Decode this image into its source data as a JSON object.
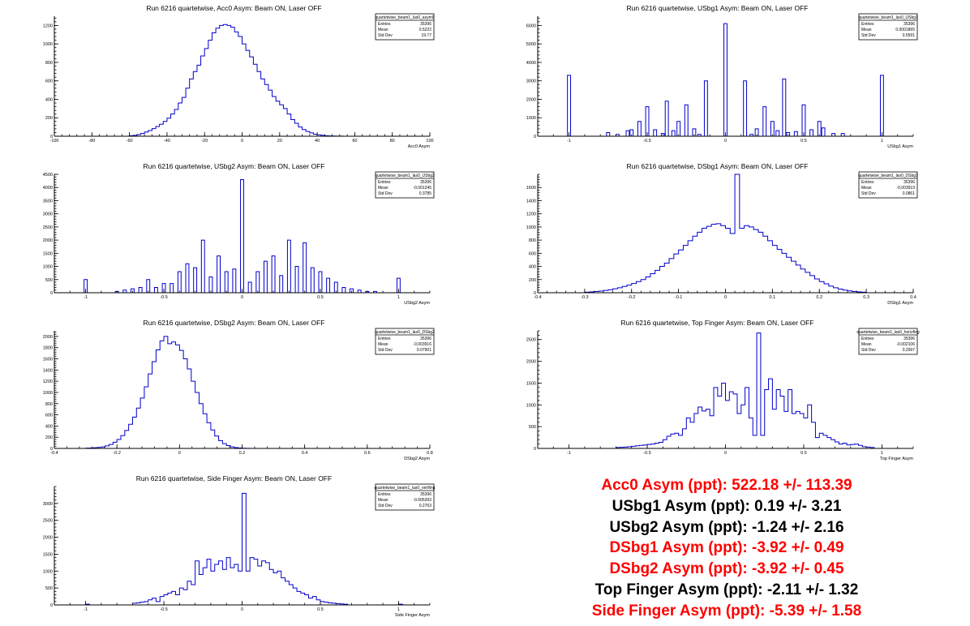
{
  "colors": {
    "histogram": "#0000cc",
    "axis": "#000000",
    "highlight": "#ff0000",
    "normal": "#000000"
  },
  "stat_labels": {
    "entries": "Entries",
    "mean": "Mean",
    "std": "Std Dev"
  },
  "chart_data": [
    {
      "type": "histogram",
      "title": "Run 6216 quartetwise, Acc0 Asym: Beam ON, Laser OFF",
      "xlabel": "Acc0 Asym",
      "xlim": [
        -100,
        100
      ],
      "ylim": [
        0,
        1300
      ],
      "xticks": [
        -100,
        -80,
        -60,
        -40,
        -20,
        0,
        20,
        40,
        60,
        80,
        100
      ],
      "xtick_labels": [
        "-100",
        "-80",
        "-60",
        "-40",
        "-20",
        "0",
        "20",
        "40",
        "60",
        "80",
        "100"
      ],
      "yticks": [
        0,
        200,
        400,
        600,
        800,
        1000,
        1200
      ],
      "ytick_labels": [
        "0",
        "200",
        "400",
        "600",
        "800",
        "1000",
        "1200"
      ],
      "stats": {
        "name": "quartetwise_beam1_las0_asym0",
        "entries": "35396",
        "mean": "0.5222",
        "std": "19.77"
      },
      "bin_width": 2,
      "bin_edges_start": -60,
      "counts": [
        5,
        10,
        18,
        30,
        45,
        62,
        82,
        105,
        130,
        160,
        195,
        240,
        290,
        360,
        420,
        520,
        620,
        700,
        770,
        870,
        950,
        1040,
        1120,
        1170,
        1200,
        1210,
        1200,
        1180,
        1130,
        1080,
        1000,
        930,
        860,
        780,
        700,
        620,
        560,
        500,
        430,
        380,
        340,
        300,
        240,
        180,
        140,
        100,
        72,
        52,
        36,
        22,
        15,
        10,
        6,
        3,
        2,
        1,
        1,
        0,
        0,
        0
      ]
    },
    {
      "type": "histogram",
      "title": "Run 6216 quartetwise, USbg1 Asym: Beam ON, Laser OFF",
      "xlabel": "USbg1 Asym",
      "xlim": [
        -1.2,
        1.2
      ],
      "ylim": [
        0,
        6500
      ],
      "xticks": [
        -1,
        -0.5,
        0,
        0.5,
        1
      ],
      "xtick_labels": [
        "-1",
        "-0.5",
        "0",
        "0.5",
        "1"
      ],
      "yticks": [
        0,
        1000,
        2000,
        3000,
        4000,
        5000,
        6000
      ],
      "ytick_labels": [
        "0",
        "1000",
        "2000",
        "3000",
        "4000",
        "5000",
        "6000"
      ],
      "stats": {
        "name": "quartetwise_beam1_las0_USbg1",
        "entries": "35396",
        "mean": "0.0001865",
        "std": "0.5591"
      },
      "spikes": [
        [
          -1.0,
          3300
        ],
        [
          -0.75,
          200
        ],
        [
          -0.69,
          100
        ],
        [
          -0.625,
          300
        ],
        [
          -0.6,
          350
        ],
        [
          -0.55,
          800
        ],
        [
          -0.5,
          1600
        ],
        [
          -0.45,
          350
        ],
        [
          -0.4,
          150
        ],
        [
          -0.375,
          1900
        ],
        [
          -0.333,
          300
        ],
        [
          -0.3,
          800
        ],
        [
          -0.25,
          1700
        ],
        [
          -0.2,
          400
        ],
        [
          -0.167,
          100
        ],
        [
          -0.125,
          3000
        ],
        [
          0.0,
          6100
        ],
        [
          0.125,
          3000
        ],
        [
          0.167,
          100
        ],
        [
          0.2,
          400
        ],
        [
          0.25,
          1600
        ],
        [
          0.3,
          800
        ],
        [
          0.333,
          300
        ],
        [
          0.375,
          3100
        ],
        [
          0.4,
          200
        ],
        [
          0.45,
          250
        ],
        [
          0.5,
          1700
        ],
        [
          0.55,
          350
        ],
        [
          0.6,
          800
        ],
        [
          0.625,
          450
        ],
        [
          0.69,
          150
        ],
        [
          0.75,
          150
        ],
        [
          1.0,
          3300
        ]
      ]
    },
    {
      "type": "histogram",
      "title": "Run 6216 quartetwise, USbg2 Asym: Beam ON, Laser OFF",
      "xlabel": "USbg2 Asym",
      "xlim": [
        -1.2,
        1.2
      ],
      "ylim": [
        0,
        4500
      ],
      "xticks": [
        -1,
        -0.5,
        0,
        0.5,
        1
      ],
      "xtick_labels": [
        "-1",
        "-0.5",
        "0",
        "0.5",
        "1"
      ],
      "yticks": [
        0,
        500,
        1000,
        1500,
        2000,
        2500,
        3000,
        3500,
        4000,
        4500
      ],
      "ytick_labels": [
        "0",
        "500",
        "1000",
        "1500",
        "2000",
        "2500",
        "3000",
        "3500",
        "4000",
        "4500"
      ],
      "stats": {
        "name": "quartetwise_beam1_las0_USbg2",
        "entries": "35396",
        "mean": "-0.001245",
        "std": "0.3785"
      },
      "spikes": [
        [
          -1.0,
          500
        ],
        [
          -0.8,
          50
        ],
        [
          -0.75,
          100
        ],
        [
          -0.7,
          150
        ],
        [
          -0.65,
          200
        ],
        [
          -0.6,
          500
        ],
        [
          -0.55,
          200
        ],
        [
          -0.5,
          350
        ],
        [
          -0.45,
          350
        ],
        [
          -0.4,
          800
        ],
        [
          -0.35,
          1100
        ],
        [
          -0.3,
          950
        ],
        [
          -0.25,
          2000
        ],
        [
          -0.2,
          600
        ],
        [
          -0.15,
          1400
        ],
        [
          -0.1,
          800
        ],
        [
          -0.05,
          900
        ],
        [
          0.0,
          4300
        ],
        [
          0.05,
          400
        ],
        [
          0.1,
          800
        ],
        [
          0.15,
          1200
        ],
        [
          0.2,
          1400
        ],
        [
          0.25,
          650
        ],
        [
          0.3,
          2000
        ],
        [
          0.35,
          1000
        ],
        [
          0.4,
          1900
        ],
        [
          0.45,
          950
        ],
        [
          0.5,
          800
        ],
        [
          0.55,
          550
        ],
        [
          0.6,
          400
        ],
        [
          0.65,
          200
        ],
        [
          0.7,
          150
        ],
        [
          0.75,
          100
        ],
        [
          0.8,
          50
        ],
        [
          0.85,
          50
        ],
        [
          1.0,
          550
        ]
      ]
    },
    {
      "type": "histogram",
      "title": "Run 6216 quartetwise, DSbg1 Asym: Beam ON, Laser OFF",
      "xlabel": "DSbg1 Asym",
      "xlim": [
        -0.4,
        0.4
      ],
      "ylim": [
        0,
        1800
      ],
      "xticks": [
        -0.4,
        -0.3,
        -0.2,
        -0.1,
        0,
        0.1,
        0.2,
        0.3,
        0.4
      ],
      "xtick_labels": [
        "-0.4",
        "-0.3",
        "-0.2",
        "-0.1",
        "0",
        "0.1",
        "0.2",
        "0.3",
        "0.4"
      ],
      "yticks": [
        0,
        200,
        400,
        600,
        800,
        1000,
        1200,
        1400,
        1600
      ],
      "ytick_labels": [
        "0",
        "200",
        "400",
        "600",
        "800",
        "1000",
        "1200",
        "1400",
        "1600"
      ],
      "stats": {
        "name": "quartetwise_beam1_las0_DSbg1",
        "entries": "35396",
        "mean": "-0.003919",
        "std": "0.0861"
      },
      "bin_width": 0.01,
      "bin_edges_start": -0.3,
      "counts": [
        8,
        12,
        18,
        25,
        35,
        45,
        60,
        75,
        95,
        115,
        140,
        170,
        200,
        240,
        290,
        340,
        400,
        450,
        520,
        590,
        650,
        720,
        790,
        860,
        920,
        980,
        1010,
        1040,
        1050,
        1020,
        980,
        900,
        1850,
        980,
        1020,
        1000,
        960,
        920,
        860,
        790,
        720,
        660,
        600,
        540,
        480,
        420,
        360,
        310,
        260,
        210,
        170,
        135,
        100,
        75,
        55,
        40,
        28,
        18,
        12,
        8
      ]
    },
    {
      "type": "histogram",
      "title": "Run 6216 quartetwise, DSbg2 Asym: Beam ON, Laser OFF",
      "xlabel": "DSbg2 Asym",
      "xlim": [
        -0.4,
        0.8
      ],
      "ylim": [
        0,
        2100
      ],
      "xticks": [
        -0.4,
        -0.2,
        0,
        0.2,
        0.4,
        0.6,
        0.8
      ],
      "xtick_labels": [
        "-0.4",
        "-0.2",
        "0",
        "0.2",
        "0.4",
        "0.6",
        "0.8"
      ],
      "yticks": [
        0,
        200,
        400,
        600,
        800,
        1000,
        1200,
        1400,
        1600,
        1800,
        2000
      ],
      "ytick_labels": [
        "0",
        "200",
        "400",
        "600",
        "800",
        "1000",
        "1200",
        "1400",
        "1600",
        "1800",
        "2000"
      ],
      "stats": {
        "name": "quartetwise_beam1_las0_DSbg2",
        "entries": "35396",
        "mean": "-0.003916",
        "std": "0.07901"
      },
      "bin_width": 0.0125,
      "bin_edges_start": -0.3,
      "counts": [
        5,
        8,
        12,
        18,
        28,
        45,
        70,
        110,
        160,
        230,
        320,
        430,
        560,
        720,
        900,
        1100,
        1330,
        1550,
        1760,
        1920,
        2000,
        1870,
        1900,
        1850,
        1750,
        1600,
        1420,
        1200,
        1000,
        800,
        620,
        460,
        330,
        220,
        140,
        85,
        50,
        28,
        15,
        8,
        4,
        2
      ]
    },
    {
      "type": "histogram",
      "title": "Run 6216 quartetwise, Top Finger Asym: Beam ON, Laser OFF",
      "xlabel": "Top Finger Asym",
      "xlim": [
        -1.2,
        1.2
      ],
      "ylim": [
        0,
        2700
      ],
      "xticks": [
        -1,
        -0.5,
        0,
        0.5,
        1
      ],
      "xtick_labels": [
        "-1",
        "-0.5",
        "0",
        "0.5",
        "1"
      ],
      "yticks": [
        0,
        500,
        1000,
        1500,
        2000,
        2500
      ],
      "ytick_labels": [
        "0",
        "500",
        "1000",
        "1500",
        "2000",
        "2500"
      ],
      "stats": {
        "name": "quartetwise_beam1_las0_horizfing",
        "entries": "35396",
        "mean": "-0.002106",
        "std": "0.2997"
      },
      "bin_width": 0.025,
      "bin_edges_start": -0.7,
      "counts": [
        20,
        25,
        30,
        40,
        50,
        60,
        70,
        80,
        90,
        100,
        120,
        140,
        200,
        280,
        330,
        350,
        300,
        450,
        700,
        600,
        800,
        950,
        860,
        900,
        750,
        1400,
        1200,
        1500,
        1100,
        1300,
        1250,
        800,
        1000,
        1400,
        700,
        300,
        2650,
        300,
        1350,
        1600,
        900,
        1350,
        1200,
        850,
        1350,
        800,
        850,
        800,
        700,
        1000,
        600,
        250,
        350,
        300,
        250,
        200,
        150,
        100,
        120,
        80,
        90,
        100,
        70,
        40,
        30,
        20
      ]
    },
    {
      "type": "histogram",
      "title": "Run 6216 quartetwise, Side Finger Asym: Beam ON, Laser OFF",
      "xlabel": "Side Finger Asym",
      "xlim": [
        -1.2,
        1.2
      ],
      "ylim": [
        0,
        3500
      ],
      "xticks": [
        -1,
        -0.5,
        0,
        0.5,
        1
      ],
      "xtick_labels": [
        "-1",
        "-0.5",
        "0",
        "0.5",
        "1"
      ],
      "yticks": [
        0,
        500,
        1000,
        1500,
        2000,
        2500,
        3000
      ],
      "ytick_labels": [
        "0",
        "500",
        "1000",
        "1500",
        "2000",
        "2500",
        "3000"
      ],
      "stats": {
        "name": "quartetwise_beam1_las0_vertfing",
        "entries": "35396",
        "mean": "-0.005393",
        "std": "0.2763"
      },
      "bin_width": 0.025,
      "bin_edges_start": -1.0,
      "counts": [
        20,
        0,
        0,
        0,
        0,
        0,
        0,
        0,
        0,
        0,
        0,
        0,
        50,
        60,
        80,
        100,
        150,
        200,
        100,
        250,
        300,
        350,
        400,
        300,
        500,
        450,
        700,
        600,
        1300,
        900,
        1100,
        1350,
        1000,
        1200,
        1300,
        1050,
        1400,
        1100,
        1200,
        1000,
        3300,
        1000,
        1400,
        1350,
        1150,
        1300,
        1250,
        1050,
        950,
        1000,
        800,
        700,
        600,
        500,
        400,
        350,
        300,
        200,
        250,
        150,
        100,
        80,
        60,
        50,
        40,
        30,
        20,
        0,
        0,
        0,
        0,
        0,
        0,
        0,
        0,
        0,
        0,
        0,
        0,
        0,
        20
      ]
    }
  ],
  "results": [
    {
      "text": "Acc0 Asym (ppt): 522.18 +/- 113.39",
      "color": "#ff0000"
    },
    {
      "text": "USbg1 Asym (ppt): 0.19 +/- 3.21",
      "color": "#000000"
    },
    {
      "text": "USbg2 Asym (ppt): -1.24 +/- 2.16",
      "color": "#000000"
    },
    {
      "text": "DSbg1 Asym (ppt): -3.92 +/- 0.49",
      "color": "#ff0000"
    },
    {
      "text": "DSbg2 Asym (ppt): -3.92 +/- 0.45",
      "color": "#ff0000"
    },
    {
      "text": "Top Finger Asym (ppt): -2.11 +/- 1.32",
      "color": "#000000"
    },
    {
      "text": "Side Finger Asym (ppt): -5.39 +/- 1.58",
      "color": "#ff0000"
    }
  ]
}
